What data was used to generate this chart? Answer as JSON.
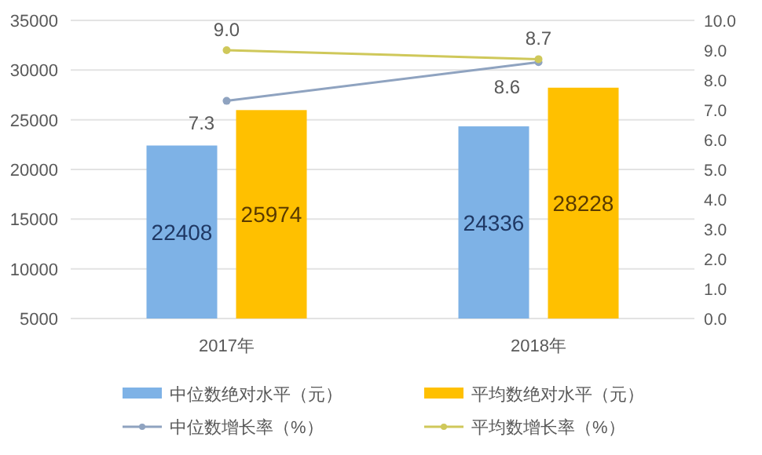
{
  "chart_data": {
    "type": "bar",
    "categories": [
      "2017年",
      "2018年"
    ],
    "series": [
      {
        "name": "中位数绝对水平（元）",
        "color": "#7eb2e6",
        "values": [
          22408,
          24336
        ],
        "value_labels": [
          "22408",
          "24336"
        ]
      },
      {
        "name": "平均数绝对水平（元）",
        "color": "#ffc000",
        "values": [
          25974,
          28228
        ],
        "value_labels": [
          "25974",
          "28228"
        ]
      },
      {
        "name": "中位数增长率（%）",
        "type": "line",
        "axis": "y2",
        "color": "#8fa3c0",
        "values": [
          7.3,
          8.6
        ],
        "value_labels": [
          "7.3",
          "8.6"
        ]
      },
      {
        "name": "平均数增长率（%）",
        "type": "line",
        "axis": "y2",
        "color": "#cfc85a",
        "values": [
          9.0,
          8.7
        ],
        "value_labels": [
          "9.0",
          "8.7"
        ]
      }
    ],
    "ylim": [
      5000,
      35000
    ],
    "yticks": [
      5000,
      10000,
      15000,
      20000,
      25000,
      30000,
      35000
    ],
    "y2lim": [
      0,
      10
    ],
    "y2ticks": [
      {
        "value": 0,
        "label": "0.0"
      },
      {
        "value": 1,
        "label": "1.0"
      },
      {
        "value": 2,
        "label": "2.0"
      },
      {
        "value": 3,
        "label": "3.0"
      },
      {
        "value": 4,
        "label": "4.0"
      },
      {
        "value": 5,
        "label": "5.0"
      },
      {
        "value": 6,
        "label": "6.0"
      },
      {
        "value": 7,
        "label": "7.0"
      },
      {
        "value": 8,
        "label": "8.0"
      },
      {
        "value": 9,
        "label": "9.0"
      },
      {
        "value": 10,
        "label": "10.0"
      }
    ],
    "grid": "y",
    "legend": "bottom",
    "marker": "circle",
    "line_style": "solid"
  }
}
